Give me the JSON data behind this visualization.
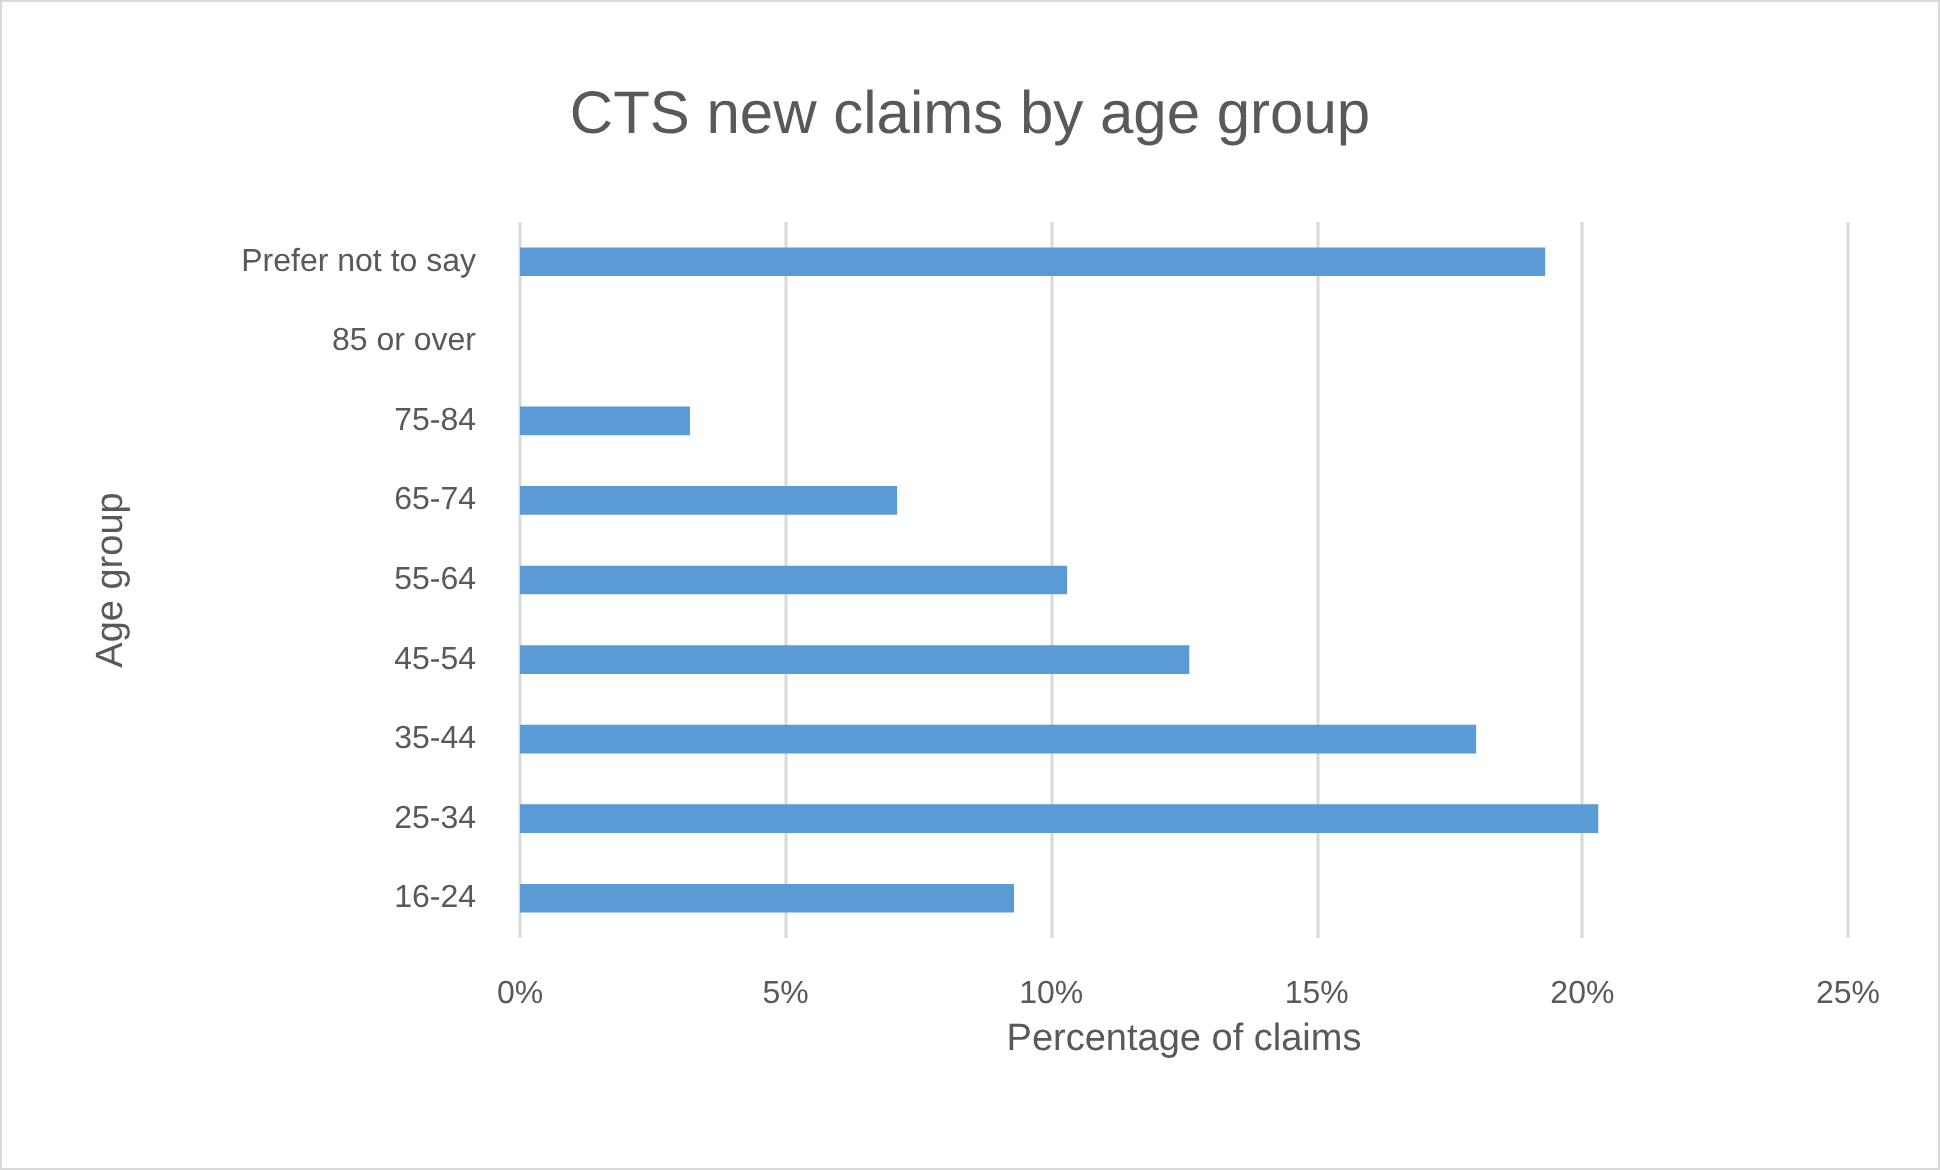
{
  "chart_data": {
    "type": "bar",
    "orientation": "horizontal",
    "title": "CTS new claims by age group",
    "xlabel": "Percentage of claims",
    "ylabel": "Age group",
    "categories": [
      "Prefer not to say",
      "85 or over",
      "75-84",
      "65-74",
      "55-64",
      "45-54",
      "35-44",
      "25-34",
      "16-24"
    ],
    "values": [
      19.3,
      0,
      3.2,
      7.1,
      10.3,
      12.6,
      18.0,
      20.3,
      9.3
    ],
    "color": "#5b9bd5",
    "xlim": [
      0,
      25
    ],
    "xticks": [
      {
        "value": 0,
        "label": "0%"
      },
      {
        "value": 5,
        "label": "5%"
      },
      {
        "value": 10,
        "label": "10%"
      },
      {
        "value": 15,
        "label": "15%"
      },
      {
        "value": 20,
        "label": "20%"
      },
      {
        "value": 25,
        "label": "25%"
      }
    ],
    "grid": "x"
  }
}
